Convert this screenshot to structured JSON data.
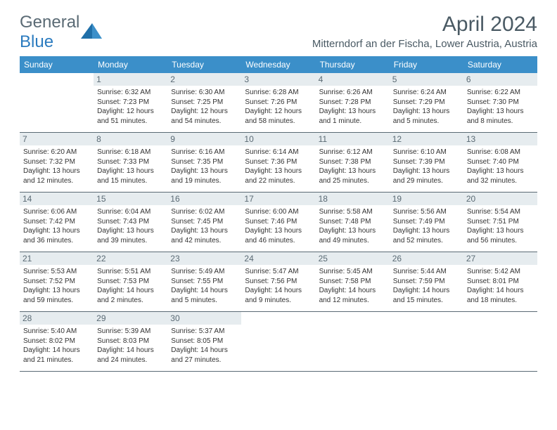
{
  "logo": {
    "part1": "General",
    "part2": "Blue"
  },
  "title": "April 2024",
  "location": "Mitterndorf an der Fischa, Lower Austria, Austria",
  "colors": {
    "header_bg": "#3b8fc9",
    "daynum_bg": "#e6ecef",
    "text": "#4a5a64",
    "rule": "#5a6a74"
  },
  "weekdays": [
    "Sunday",
    "Monday",
    "Tuesday",
    "Wednesday",
    "Thursday",
    "Friday",
    "Saturday"
  ],
  "weeks": [
    [
      {
        "n": "",
        "lines": []
      },
      {
        "n": "1",
        "lines": [
          "Sunrise: 6:32 AM",
          "Sunset: 7:23 PM",
          "Daylight: 12 hours and 51 minutes."
        ]
      },
      {
        "n": "2",
        "lines": [
          "Sunrise: 6:30 AM",
          "Sunset: 7:25 PM",
          "Daylight: 12 hours and 54 minutes."
        ]
      },
      {
        "n": "3",
        "lines": [
          "Sunrise: 6:28 AM",
          "Sunset: 7:26 PM",
          "Daylight: 12 hours and 58 minutes."
        ]
      },
      {
        "n": "4",
        "lines": [
          "Sunrise: 6:26 AM",
          "Sunset: 7:28 PM",
          "Daylight: 13 hours and 1 minute."
        ]
      },
      {
        "n": "5",
        "lines": [
          "Sunrise: 6:24 AM",
          "Sunset: 7:29 PM",
          "Daylight: 13 hours and 5 minutes."
        ]
      },
      {
        "n": "6",
        "lines": [
          "Sunrise: 6:22 AM",
          "Sunset: 7:30 PM",
          "Daylight: 13 hours and 8 minutes."
        ]
      }
    ],
    [
      {
        "n": "7",
        "lines": [
          "Sunrise: 6:20 AM",
          "Sunset: 7:32 PM",
          "Daylight: 13 hours and 12 minutes."
        ]
      },
      {
        "n": "8",
        "lines": [
          "Sunrise: 6:18 AM",
          "Sunset: 7:33 PM",
          "Daylight: 13 hours and 15 minutes."
        ]
      },
      {
        "n": "9",
        "lines": [
          "Sunrise: 6:16 AM",
          "Sunset: 7:35 PM",
          "Daylight: 13 hours and 19 minutes."
        ]
      },
      {
        "n": "10",
        "lines": [
          "Sunrise: 6:14 AM",
          "Sunset: 7:36 PM",
          "Daylight: 13 hours and 22 minutes."
        ]
      },
      {
        "n": "11",
        "lines": [
          "Sunrise: 6:12 AM",
          "Sunset: 7:38 PM",
          "Daylight: 13 hours and 25 minutes."
        ]
      },
      {
        "n": "12",
        "lines": [
          "Sunrise: 6:10 AM",
          "Sunset: 7:39 PM",
          "Daylight: 13 hours and 29 minutes."
        ]
      },
      {
        "n": "13",
        "lines": [
          "Sunrise: 6:08 AM",
          "Sunset: 7:40 PM",
          "Daylight: 13 hours and 32 minutes."
        ]
      }
    ],
    [
      {
        "n": "14",
        "lines": [
          "Sunrise: 6:06 AM",
          "Sunset: 7:42 PM",
          "Daylight: 13 hours and 36 minutes."
        ]
      },
      {
        "n": "15",
        "lines": [
          "Sunrise: 6:04 AM",
          "Sunset: 7:43 PM",
          "Daylight: 13 hours and 39 minutes."
        ]
      },
      {
        "n": "16",
        "lines": [
          "Sunrise: 6:02 AM",
          "Sunset: 7:45 PM",
          "Daylight: 13 hours and 42 minutes."
        ]
      },
      {
        "n": "17",
        "lines": [
          "Sunrise: 6:00 AM",
          "Sunset: 7:46 PM",
          "Daylight: 13 hours and 46 minutes."
        ]
      },
      {
        "n": "18",
        "lines": [
          "Sunrise: 5:58 AM",
          "Sunset: 7:48 PM",
          "Daylight: 13 hours and 49 minutes."
        ]
      },
      {
        "n": "19",
        "lines": [
          "Sunrise: 5:56 AM",
          "Sunset: 7:49 PM",
          "Daylight: 13 hours and 52 minutes."
        ]
      },
      {
        "n": "20",
        "lines": [
          "Sunrise: 5:54 AM",
          "Sunset: 7:51 PM",
          "Daylight: 13 hours and 56 minutes."
        ]
      }
    ],
    [
      {
        "n": "21",
        "lines": [
          "Sunrise: 5:53 AM",
          "Sunset: 7:52 PM",
          "Daylight: 13 hours and 59 minutes."
        ]
      },
      {
        "n": "22",
        "lines": [
          "Sunrise: 5:51 AM",
          "Sunset: 7:53 PM",
          "Daylight: 14 hours and 2 minutes."
        ]
      },
      {
        "n": "23",
        "lines": [
          "Sunrise: 5:49 AM",
          "Sunset: 7:55 PM",
          "Daylight: 14 hours and 5 minutes."
        ]
      },
      {
        "n": "24",
        "lines": [
          "Sunrise: 5:47 AM",
          "Sunset: 7:56 PM",
          "Daylight: 14 hours and 9 minutes."
        ]
      },
      {
        "n": "25",
        "lines": [
          "Sunrise: 5:45 AM",
          "Sunset: 7:58 PM",
          "Daylight: 14 hours and 12 minutes."
        ]
      },
      {
        "n": "26",
        "lines": [
          "Sunrise: 5:44 AM",
          "Sunset: 7:59 PM",
          "Daylight: 14 hours and 15 minutes."
        ]
      },
      {
        "n": "27",
        "lines": [
          "Sunrise: 5:42 AM",
          "Sunset: 8:01 PM",
          "Daylight: 14 hours and 18 minutes."
        ]
      }
    ],
    [
      {
        "n": "28",
        "lines": [
          "Sunrise: 5:40 AM",
          "Sunset: 8:02 PM",
          "Daylight: 14 hours and 21 minutes."
        ]
      },
      {
        "n": "29",
        "lines": [
          "Sunrise: 5:39 AM",
          "Sunset: 8:03 PM",
          "Daylight: 14 hours and 24 minutes."
        ]
      },
      {
        "n": "30",
        "lines": [
          "Sunrise: 5:37 AM",
          "Sunset: 8:05 PM",
          "Daylight: 14 hours and 27 minutes."
        ]
      },
      {
        "n": "",
        "lines": []
      },
      {
        "n": "",
        "lines": []
      },
      {
        "n": "",
        "lines": []
      },
      {
        "n": "",
        "lines": []
      }
    ]
  ]
}
